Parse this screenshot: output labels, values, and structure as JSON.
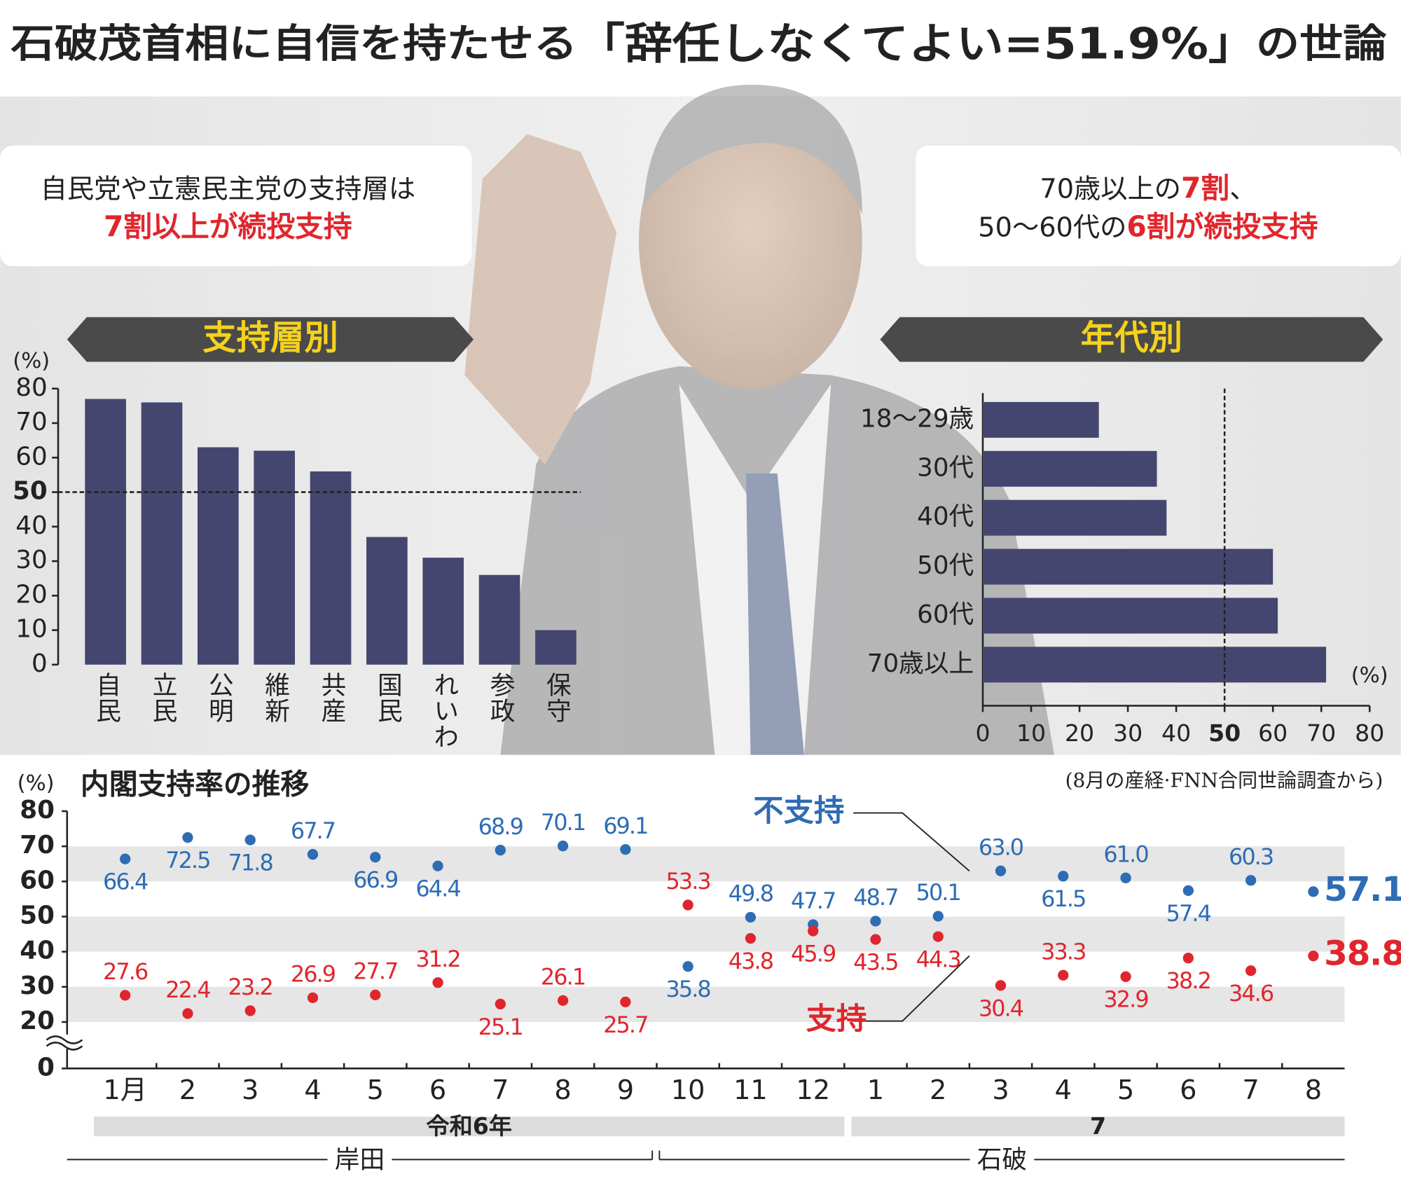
{
  "title": [
    "石破茂首相に自信を持たせる",
    "「辞任しなくてよい=51.9%」",
    "の世論"
  ],
  "chart_data": [
    {
      "type": "bar",
      "title": "支持層別",
      "y_label": "(%)",
      "annotations": [
        [
          {
            "text": "自民党や立憲民主党の支持層は",
            "color": "#222222"
          }
        ],
        [
          {
            "text": "7割以上が続投支持",
            "color": "#e0262d"
          }
        ]
      ],
      "categories": [
        "自民",
        "立民",
        "公明",
        "維新",
        "共産",
        "国民",
        "れいわ",
        "参政",
        "保守"
      ],
      "values": [
        77,
        76,
        63,
        62,
        56,
        37,
        31,
        26,
        10
      ],
      "color": "#45466f",
      "ylim": [
        0,
        80
      ],
      "yticks": [
        0,
        10,
        20,
        30,
        40,
        50,
        60,
        70,
        80
      ],
      "reference_line": 50
    },
    {
      "type": "barh",
      "title": "年代別",
      "x_label": "(%)",
      "annotations": [
        [
          {
            "text": "70歳以上の",
            "color": "#222222"
          },
          {
            "text": "7割",
            "color": "#e0262d"
          },
          {
            "text": "、",
            "color": "#222222"
          }
        ],
        [
          {
            "text": "50〜60代の",
            "color": "#222222"
          },
          {
            "text": "6割が続投支持",
            "color": "#e0262d"
          }
        ]
      ],
      "categories": [
        "18〜29歳",
        "30代",
        "40代",
        "50代",
        "60代",
        "70歳以上"
      ],
      "values": [
        24,
        36,
        38,
        60,
        61,
        71
      ],
      "color": "#45466f",
      "xlim": [
        0,
        80
      ],
      "xticks": [
        0,
        10,
        20,
        30,
        40,
        50,
        60,
        70,
        80
      ],
      "reference_line": 50
    },
    {
      "type": "line",
      "title": "内閣支持率の推移",
      "y_label": "(%)",
      "source": "(8月の産経·FNN合同世論調査から)",
      "categories": [
        "1月",
        "2",
        "3",
        "4",
        "5",
        "6",
        "7",
        "8",
        "9",
        "10",
        "11",
        "12",
        "1",
        "2",
        "3",
        "4",
        "5",
        "6",
        "7",
        "8"
      ],
      "series": [
        {
          "name": "不支持",
          "color": "#2e6cb4",
          "values": [
            66.4,
            72.5,
            71.8,
            67.7,
            66.9,
            64.4,
            68.9,
            70.1,
            69.1,
            35.8,
            49.8,
            47.7,
            48.7,
            50.1,
            63.0,
            61.5,
            61.0,
            57.4,
            60.3,
            57.1
          ],
          "value_labels": [
            "66.4",
            "72.5",
            "71.8",
            "67.7",
            "66.9",
            "64.4",
            "68.9",
            "70.1",
            "69.1",
            "35.8",
            "49.8",
            "47.7",
            "48.7",
            "50.1",
            "63.0",
            "61.5",
            "61.0",
            "57.4",
            "60.3",
            "57.1"
          ]
        },
        {
          "name": "支持",
          "color": "#e0262d",
          "values": [
            27.6,
            22.4,
            23.2,
            26.9,
            27.7,
            31.2,
            25.1,
            26.1,
            25.7,
            53.3,
            43.8,
            45.9,
            43.5,
            44.3,
            30.4,
            33.3,
            32.9,
            38.2,
            34.6,
            38.8
          ],
          "value_labels": [
            "27.6",
            "22.4",
            "23.2",
            "26.9",
            "27.7",
            "31.2",
            "25.1",
            "26.1",
            "25.7",
            "53.3",
            "43.8",
            "45.9",
            "43.5",
            "44.3",
            "30.4",
            "33.3",
            "32.9",
            "38.2",
            "34.6",
            "38.8"
          ]
        }
      ],
      "ylim": [
        0,
        80
      ],
      "yticks": [
        0,
        20,
        30,
        40,
        50,
        60,
        70,
        80
      ],
      "axis_break": [
        0,
        20
      ],
      "grid": "bands",
      "periods": [
        {
          "label": "令和6年",
          "from": 0,
          "to": 11
        },
        {
          "label": "7",
          "from": 12,
          "to": 19
        }
      ],
      "cabinets": [
        {
          "label": "岸田",
          "from": 0,
          "to": 8
        },
        {
          "label": "石破",
          "from": 9,
          "to": 19
        }
      ]
    }
  ]
}
